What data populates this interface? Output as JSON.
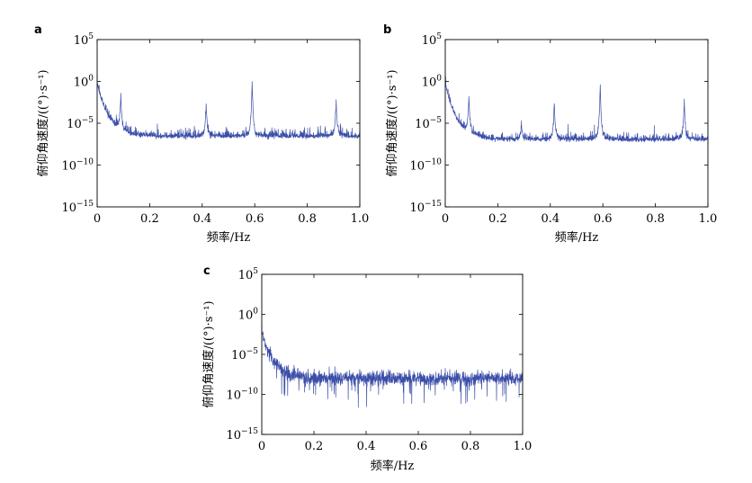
{
  "chart_data": [
    {
      "panel": "a",
      "type": "line",
      "xlabel": "频率/Hz",
      "ylabel": "俯仰角速度/((°)·s⁻¹)",
      "xlim": [
        0,
        1.0
      ],
      "ylim_exp": [
        -15,
        5
      ],
      "yscale": "log",
      "x_ticks": [
        "0",
        "0.2",
        "0.4",
        "0.6",
        "0.8",
        "1.0"
      ],
      "y_tick_exponents": [
        "5",
        "0",
        "−5",
        "−10",
        "−15"
      ],
      "baseline_exp": -6.8,
      "noise_amp_exp": 0.9,
      "dc_peak_exp": 0.8,
      "peaks": [
        {
          "freq": 0.09,
          "exp": -2.0
        },
        {
          "freq": 0.415,
          "exp": -3.0
        },
        {
          "freq": 0.59,
          "exp": -0.5
        },
        {
          "freq": 0.91,
          "exp": -2.6
        }
      ],
      "color": "#3b4ea8"
    },
    {
      "panel": "b",
      "type": "line",
      "xlabel": "频率/Hz",
      "ylabel": "俯仰角速度/((°)·s⁻¹)",
      "xlim": [
        0,
        1.0
      ],
      "ylim_exp": [
        -15,
        5
      ],
      "yscale": "log",
      "x_ticks": [
        "0",
        "0.2",
        "0.4",
        "0.6",
        "0.8",
        "1.0"
      ],
      "y_tick_exponents": [
        "5",
        "0",
        "−5",
        "−10",
        "−15"
      ],
      "baseline_exp": -7.2,
      "noise_amp_exp": 0.8,
      "dc_peak_exp": 0.8,
      "peaks": [
        {
          "freq": 0.09,
          "exp": -2.2
        },
        {
          "freq": 0.29,
          "exp": -5.2
        },
        {
          "freq": 0.415,
          "exp": -3.0
        },
        {
          "freq": 0.59,
          "exp": -1.0
        },
        {
          "freq": 0.91,
          "exp": -2.8
        }
      ],
      "color": "#3b4ea8"
    },
    {
      "panel": "c",
      "type": "line",
      "xlabel": "频率/Hz",
      "ylabel": "俯仰角速度/((°)·s⁻¹)",
      "xlim": [
        0,
        1.0
      ],
      "ylim_exp": [
        -15,
        5
      ],
      "yscale": "log",
      "x_ticks": [
        "0",
        "0.2",
        "0.4",
        "0.6",
        "0.8",
        "1.0"
      ],
      "y_tick_exponents": [
        "5",
        "0",
        "−5",
        "−10",
        "−15"
      ],
      "baseline_exp": -8.0,
      "noise_amp_exp": 0.8,
      "dc_peak_exp": -1.0,
      "peaks": [],
      "color": "#3b4ea8"
    }
  ]
}
